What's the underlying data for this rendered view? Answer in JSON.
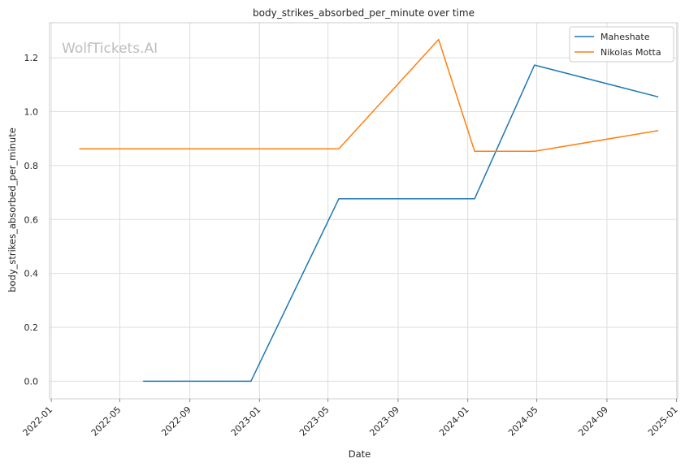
{
  "chart_data": {
    "type": "line",
    "title": "body_strikes_absorbed_per_minute over time",
    "xlabel": "Date",
    "ylabel": "body_strikes_absorbed_per_minute",
    "watermark": "WolfTickets.AI",
    "x_axis_type": "date",
    "xlim": [
      "2022-01-01",
      "2025-01-01"
    ],
    "ylim": [
      -0.065,
      1.33
    ],
    "x_ticks": [
      "2022-01",
      "2022-05",
      "2022-09",
      "2023-01",
      "2023-05",
      "2023-09",
      "2024-01",
      "2024-05",
      "2024-09",
      "2025-01"
    ],
    "y_ticks": [
      0.0,
      0.2,
      0.4,
      0.6,
      0.8,
      1.0,
      1.2
    ],
    "y_tick_labels": [
      "0.0",
      "0.2",
      "0.4",
      "0.6",
      "0.8",
      "1.0",
      "1.2"
    ],
    "grid": true,
    "legend_position": "top-right",
    "series": [
      {
        "name": "Maheshate",
        "color": "#1f77b4",
        "points": [
          {
            "x": "2022-06-11",
            "y": 0.0
          },
          {
            "x": "2022-12-17",
            "y": 0.0
          },
          {
            "x": "2023-05-20",
            "y": 0.677
          },
          {
            "x": "2024-01-13",
            "y": 0.677
          },
          {
            "x": "2024-04-27",
            "y": 1.173
          },
          {
            "x": "2024-11-30",
            "y": 1.055
          }
        ]
      },
      {
        "name": "Nikolas Motta",
        "color": "#ff7f0e",
        "points": [
          {
            "x": "2022-02-19",
            "y": 0.862
          },
          {
            "x": "2023-05-20",
            "y": 0.862
          },
          {
            "x": "2023-11-11",
            "y": 1.268
          },
          {
            "x": "2024-01-13",
            "y": 0.853
          },
          {
            "x": "2024-04-27",
            "y": 0.853
          },
          {
            "x": "2024-11-30",
            "y": 0.93
          }
        ]
      }
    ]
  }
}
